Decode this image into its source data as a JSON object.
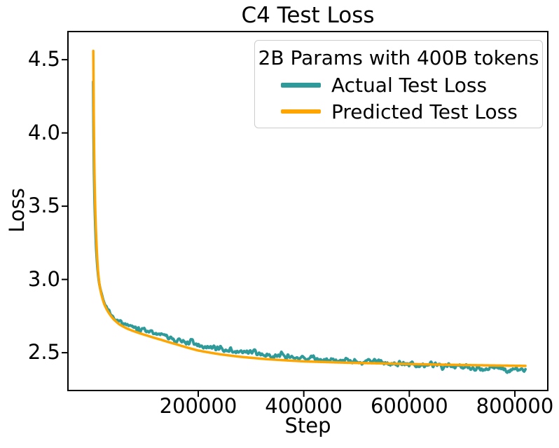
{
  "figure": {
    "background": "#ffffff",
    "frame_color": "#000000"
  },
  "chart_data": {
    "type": "line",
    "title": "C4 Test Loss",
    "xlabel": "Step",
    "ylabel": "Loss",
    "xlim": [
      -46900,
      862400
    ],
    "ylim": [
      2.242,
      4.692
    ],
    "xticks": [
      200000,
      400000,
      600000,
      800000
    ],
    "xtick_labels": [
      "200000",
      "400000",
      "600000",
      "800000"
    ],
    "yticks": [
      2.5,
      3.0,
      3.5,
      4.0,
      4.5
    ],
    "ytick_labels": [
      "2.5",
      "3.0",
      "3.5",
      "4.0",
      "4.5"
    ],
    "grid": false,
    "legend": {
      "title": "2B Params with 400B tokens",
      "position": "upper right",
      "entries": [
        {
          "label": "Actual Test Loss",
          "color": "#2F9A9A"
        },
        {
          "label": "Predicted Test Loss",
          "color": "#FFA500"
        }
      ]
    },
    "series": [
      {
        "name": "Actual Test Loss",
        "color": "#2F9A9A",
        "linewidth": 3.8,
        "noise_amplitude": 0.032,
        "noise_fade_in_start": 8000,
        "noise_fade_in_end": 33000,
        "points": [
          [
            900,
            4.35
          ],
          [
            1200,
            4.18
          ],
          [
            1700,
            3.98
          ],
          [
            2400,
            3.76
          ],
          [
            3400,
            3.56
          ],
          [
            4800,
            3.38
          ],
          [
            6500,
            3.22
          ],
          [
            9000,
            3.08
          ],
          [
            12000,
            2.98
          ],
          [
            16000,
            2.91
          ],
          [
            21000,
            2.85
          ],
          [
            28000,
            2.8
          ],
          [
            37000,
            2.755
          ],
          [
            50000,
            2.715
          ],
          [
            65000,
            2.69
          ],
          [
            85000,
            2.663
          ],
          [
            105000,
            2.645
          ],
          [
            130000,
            2.618
          ],
          [
            160000,
            2.588
          ],
          [
            200000,
            2.552
          ],
          [
            240000,
            2.528
          ],
          [
            280000,
            2.508
          ],
          [
            330000,
            2.488
          ],
          [
            400000,
            2.465
          ],
          [
            480000,
            2.447
          ],
          [
            560000,
            2.429
          ],
          [
            640000,
            2.413
          ],
          [
            720000,
            2.399
          ],
          [
            820000,
            2.386
          ]
        ]
      },
      {
        "name": "Predicted Test Loss",
        "color": "#FFA500",
        "linewidth": 3.5,
        "noise_amplitude": 0,
        "noise_fade_in_start": 0,
        "noise_fade_in_end": 0,
        "points": [
          [
            1100,
            4.56
          ],
          [
            1400,
            4.38
          ],
          [
            2000,
            4.12
          ],
          [
            2800,
            3.86
          ],
          [
            4000,
            3.6
          ],
          [
            5500,
            3.4
          ],
          [
            7500,
            3.22
          ],
          [
            10000,
            3.06
          ],
          [
            13000,
            2.96
          ],
          [
            17000,
            2.89
          ],
          [
            22000,
            2.83
          ],
          [
            29000,
            2.78
          ],
          [
            38000,
            2.735
          ],
          [
            50000,
            2.695
          ],
          [
            65000,
            2.665
          ],
          [
            85000,
            2.638
          ],
          [
            105000,
            2.615
          ],
          [
            130000,
            2.588
          ],
          [
            160000,
            2.556
          ],
          [
            200000,
            2.515
          ],
          [
            240000,
            2.49
          ],
          [
            280000,
            2.472
          ],
          [
            330000,
            2.456
          ],
          [
            400000,
            2.441
          ],
          [
            480000,
            2.432
          ],
          [
            560000,
            2.426
          ],
          [
            640000,
            2.42
          ],
          [
            720000,
            2.415
          ],
          [
            820000,
            2.41
          ]
        ]
      }
    ]
  }
}
